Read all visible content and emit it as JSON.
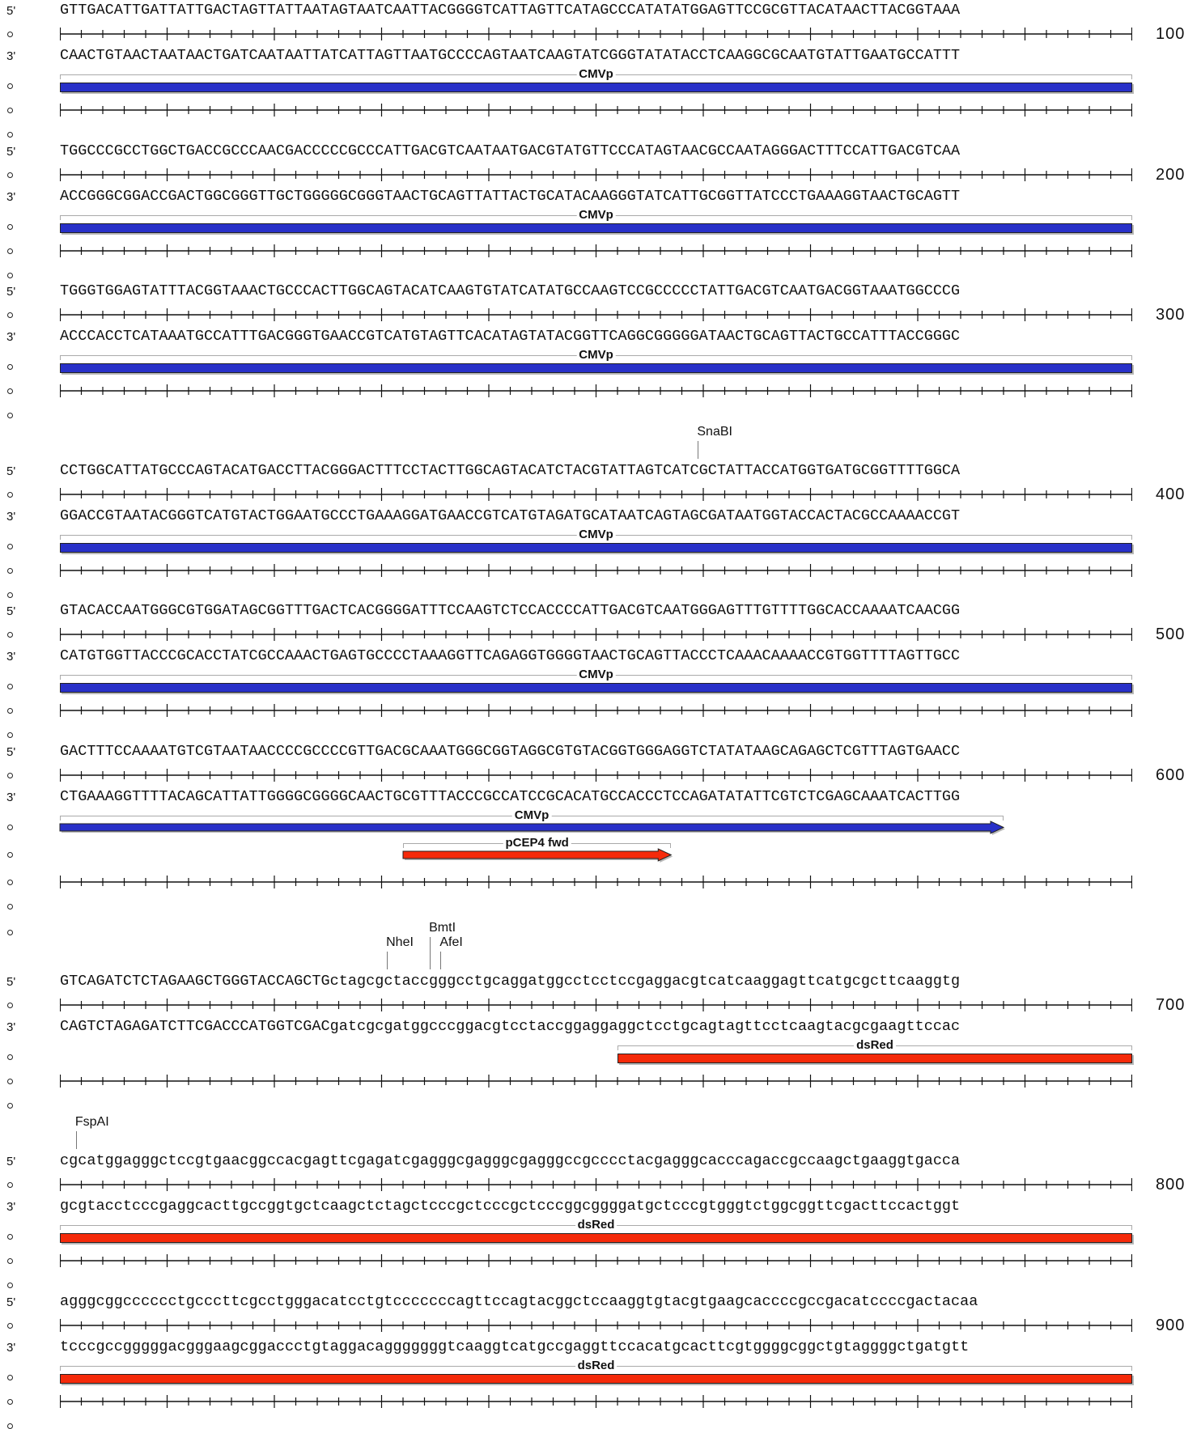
{
  "strand_labels": {
    "top": "5'",
    "bottom": "3'"
  },
  "colors": {
    "cmvp": "#2830c8",
    "red_feature": "#f52a0a"
  },
  "blocks": [
    {
      "top": "GTTGACATTGATTATTGACTAGTTATTAATAGTAATCAATTACGGGGTCATTAGTTCATAGCCCATATATGGAGTTCCGCGTTACATAACTTACGGTAAA",
      "bottom": "CAACTGTAACTAATAACTGATCAATAATTATCATTAGTTAATGCCCCAGTAATCAAGTATCGGGTATATACCTCAAGGCGCAATGTATTGAATGCCATTT",
      "position": "100",
      "sites": [],
      "features": [
        {
          "label": "CMVp",
          "start": 1,
          "end": 100,
          "color": "blue",
          "arrow": false
        }
      ]
    },
    {
      "top": "TGGCCCGCCTGGCTGACCGCCCAACGACCCCCGCCCATTGACGTCAATAATGACGTATGTTCCCATAGTAACGCCAATAGGGACTTTCCATTGACGTCAA",
      "bottom": "ACCGGGCGGACCGACTGGCGGGTTGCTGGGGGCGGGTAACTGCAGTTATTACTGCATACAAGGGTATCATTGCGGTTATCCCTGAAAGGTAACTGCAGTT",
      "position": "200",
      "sites": [],
      "features": [
        {
          "label": "CMVp",
          "start": 1,
          "end": 100,
          "color": "blue",
          "arrow": false
        }
      ]
    },
    {
      "top": "TGGGTGGAGTATTTACGGTAAACTGCCCACTTGGCAGTACATCAAGTGTATCATATGCCAAGTCCGCCCCCTATTGACGTCAATGACGGTAAATGGCCCG",
      "bottom": "ACCCACCTCATAAATGCCATTTGACGGGTGAACCGTCATGTAGTTCACATAGTATACGGTTCAGGCGGGGGATAACTGCAGTTACTGCCATTTACCGGGC",
      "position": "300",
      "sites": [],
      "features": [
        {
          "label": "CMVp",
          "start": 1,
          "end": 100,
          "color": "blue",
          "arrow": false
        }
      ]
    },
    {
      "top": "CCTGGCATTATGCCCAGTACATGACCTTACGGGACTTTCCTACTTGGCAGTACATCTACGTATTAGTCATCGCTATTACCATGGTGATGCGGTTTTGGCA",
      "bottom": "GGACCGTAATACGGGTCATGTACTGGAATGCCCTGAAAGGATGAACCGTCATGTAGATGCATAATCAGTAGCGATAATGGTACCACTACGCCAAAACCGT",
      "position": "400",
      "sites": [
        {
          "label": "SnaBI",
          "pos": 60,
          "level": 0
        }
      ],
      "features": [
        {
          "label": "CMVp",
          "start": 1,
          "end": 100,
          "color": "blue",
          "arrow": false
        }
      ]
    },
    {
      "top": "GTACACCAATGGGCGTGGATAGCGGTTTGACTCACGGGGATTTCCAAGTCTCCACCCCATTGACGTCAATGGGAGTTTGTTTTGGCACCAAAATCAACGG",
      "bottom": "CATGTGGTTACCCGCACCTATCGCCAAACTGAGTGCCCCTAAAGGTTCAGAGGTGGGGTAACTGCAGTTACCCTCAAACAAAACCGTGGTTTTAGTTGCC",
      "position": "500",
      "sites": [],
      "features": [
        {
          "label": "CMVp",
          "start": 1,
          "end": 100,
          "color": "blue",
          "arrow": false
        }
      ]
    },
    {
      "top": "GACTTTCCAAAATGTCGTAATAACCCCGCCCCGTTGACGCAAATGGGCGGTAGGCGTGTACGGTGGGAGGTCTATATAAGCAGAGCTCGTTTAGTGAACC",
      "bottom": "CTGAAAGGTTTTACAGCATTATTGGGGCGGGGCAACTGCGTTTACCCGCCATCCGCACATGCCACCCTCCAGATATATTCGTCTCGAGCAAATCACTTGG",
      "position": "600",
      "sites": [],
      "features": [
        {
          "label": "CMVp",
          "start": 1,
          "end": 88,
          "color": "blue",
          "arrow": true
        },
        {
          "label": "pCEP4 fwd",
          "start": 33,
          "end": 57,
          "color": "red",
          "arrow": true
        }
      ]
    },
    {
      "top": "GTCAGATCTCTAGAAGCTGGGTACCAGCTGctagcgctaccgggcctgcaggatggcctcctccgaggacgtcatcaaggagttcatgcgcttcaaggtg",
      "bottom": "CAGTCTAGAGATCTTCGACCCATGGTCGACgatcgcgatggcccggacgtcctaccggaggaggctcctgcagtagttcctcaagtacgcgaagttccac",
      "position": "700",
      "sites": [
        {
          "label": "NheI",
          "pos": 31,
          "level": 0
        },
        {
          "label": "BmtI",
          "pos": 35,
          "level": 1
        },
        {
          "label": "AfeI",
          "pos": 36,
          "level": 0
        }
      ],
      "features": [
        {
          "label": "dsRed",
          "start": 53,
          "end": 100,
          "color": "red",
          "arrow": false
        }
      ]
    },
    {
      "top": "cgcatggagggctccgtgaacggccacgagttcgagatcgagggcgagggcgagggccgcccctacgagggcacccagaccgccaagctgaaggtgacca",
      "bottom": "gcgtacctcccgaggcacttgccggtgctcaagctctagctcccgctcccgctcccggcggggatgctcccgtgggtctggcggttcgacttccactggt",
      "position": "800",
      "sites": [
        {
          "label": "FspAI",
          "pos": 2,
          "level": 0
        }
      ],
      "features": [
        {
          "label": "dsRed",
          "start": 1,
          "end": 100,
          "color": "red",
          "arrow": false
        }
      ]
    },
    {
      "top": "agggcggcccccctgcccttcgcctgggacatcctgtcccccccagttccagtacggctccaaggtgtacgtgaagcaccccgccgacatccccgactacaa",
      "bottom": "tcccgccgggggacgggaagcggaccctgtaggacagggggggtcaaggtcatgccgaggttccacatgcacttcgtggggcggctgtaggggctgatgtt",
      "position": "900",
      "sites": [],
      "features": [
        {
          "label": "dsRed",
          "start": 1,
          "end": 100,
          "color": "red",
          "arrow": false
        }
      ]
    }
  ]
}
